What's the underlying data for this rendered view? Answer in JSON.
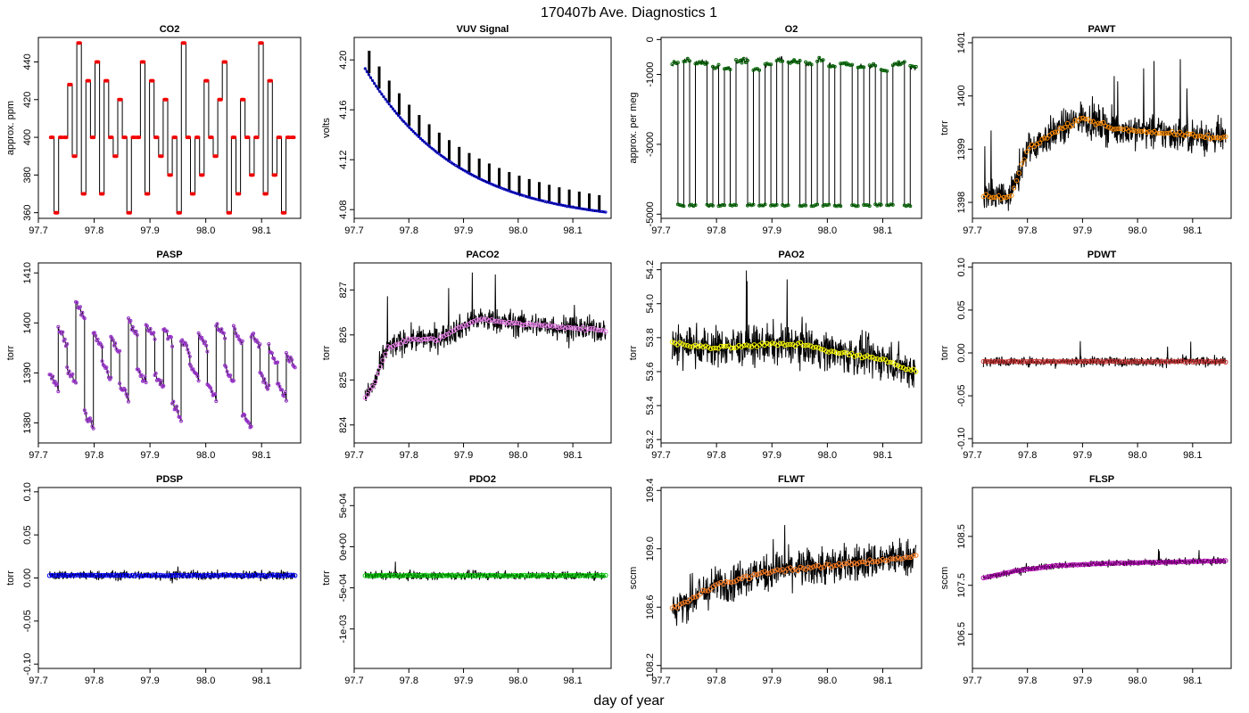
{
  "figure": {
    "title": "170407b   Ave. Diagnostics 1",
    "xlabel": "day of year"
  },
  "chart_data": [
    {
      "type": "line",
      "title": "CO2",
      "ylabel": "approx. ppm",
      "xlim": [
        97.7,
        98.17
      ],
      "ylim": [
        357,
        453
      ],
      "xticks": [
        97.7,
        97.8,
        97.9,
        98.0,
        98.1
      ],
      "xtick_labels": [
        "97.7",
        "97.8",
        "97.9",
        "98.0",
        "98.1"
      ],
      "yticks": [
        360,
        380,
        400,
        420,
        440
      ],
      "ytick_labels": [
        "360",
        "380",
        "400",
        "420",
        "440"
      ],
      "series": [
        {
          "name": "CO2",
          "style": "step",
          "marker_color": "#ff0000",
          "levels": [
            400,
            360,
            400,
            400,
            428,
            390,
            450,
            370,
            430,
            400,
            440,
            370,
            430,
            400,
            390,
            420,
            400,
            360,
            400,
            400,
            440,
            370,
            430,
            400,
            390,
            420,
            380,
            400,
            360,
            450,
            400,
            370,
            400,
            380,
            430,
            400,
            390,
            420,
            440,
            360,
            400,
            370,
            420,
            400,
            380,
            400,
            450,
            370,
            430,
            380,
            400,
            360,
            400,
            400
          ],
          "x_start": 97.72,
          "x_end": 98.16
        }
      ]
    },
    {
      "type": "line",
      "title": "VUV Signal",
      "ylabel": "volts",
      "xlim": [
        97.7,
        98.17
      ],
      "ylim": [
        4.073,
        4.218
      ],
      "xticks": [
        97.7,
        97.8,
        97.9,
        98.0,
        98.1
      ],
      "xtick_labels": [
        "97.7",
        "97.8",
        "97.9",
        "98.0",
        "98.1"
      ],
      "yticks": [
        4.08,
        4.12,
        4.16,
        4.2
      ],
      "ytick_labels": [
        "4.08",
        "4.12",
        "4.16",
        "4.20"
      ],
      "series": [
        {
          "name": "VUV",
          "style": "decay",
          "y_start": 4.193,
          "y_end": 4.078,
          "marker_color": "#0000cc",
          "spike_height": 0.018
        }
      ]
    },
    {
      "type": "line",
      "title": "O2",
      "ylabel": "approx. per meg",
      "xlim": [
        97.7,
        98.17
      ],
      "ylim": [
        -5120,
        60
      ],
      "xticks": [
        97.7,
        97.8,
        97.9,
        98.0,
        98.1
      ],
      "xtick_labels": [
        "97.7",
        "97.8",
        "97.9",
        "98.0",
        "98.1"
      ],
      "yticks": [
        -5000,
        -3000,
        -1000,
        0
      ],
      "ytick_labels": [
        "-5000",
        "-3000",
        "-1000",
        "0"
      ],
      "series": [
        {
          "name": "O2",
          "style": "square",
          "high": -700,
          "low": -4750,
          "marker_color": "#006600"
        }
      ]
    },
    {
      "type": "line",
      "title": "PAWT",
      "ylabel": "torr",
      "xlim": [
        97.7,
        98.17
      ],
      "ylim": [
        1397.7,
        1401.1
      ],
      "xticks": [
        97.7,
        97.8,
        97.9,
        98.0,
        98.1
      ],
      "xtick_labels": [
        "97.7",
        "97.8",
        "97.9",
        "98.0",
        "98.1"
      ],
      "yticks": [
        1398,
        1399,
        1400,
        1401
      ],
      "ytick_labels": [
        "1398",
        "1399",
        "1400",
        "1401"
      ],
      "series": [
        {
          "name": "PAWT",
          "style": "noisy",
          "mean_points": [
            [
              97.72,
              1398.1
            ],
            [
              97.77,
              1398.1
            ],
            [
              97.8,
              1399.0
            ],
            [
              97.83,
              1399.2
            ],
            [
              97.9,
              1399.6
            ],
            [
              97.95,
              1399.4
            ],
            [
              98.05,
              1399.3
            ],
            [
              98.16,
              1399.2
            ]
          ],
          "noise": 0.7,
          "marker_color": "#ff8c00"
        }
      ]
    },
    {
      "type": "line",
      "title": "PASP",
      "ylabel": "torr",
      "xlim": [
        97.7,
        98.17
      ],
      "ylim": [
        1376,
        1412
      ],
      "xticks": [
        97.7,
        97.8,
        97.9,
        98.0,
        98.1
      ],
      "xtick_labels": [
        "97.7",
        "97.8",
        "97.9",
        "98.0",
        "98.1"
      ],
      "yticks": [
        1380,
        1390,
        1400,
        1410
      ],
      "ytick_labels": [
        "1380",
        "1390",
        "1400",
        "1410"
      ],
      "series": [
        {
          "name": "PASP",
          "style": "sawtooth",
          "levels": [
            1390,
            1399,
            1391,
            1404,
            1382,
            1398,
            1392,
            1397,
            1388,
            1401,
            1391,
            1400,
            1390,
            1399,
            1384,
            1397,
            1392,
            1398,
            1388,
            1400,
            1391,
            1399,
            1382,
            1398,
            1390,
            1395,
            1388,
            1394
          ],
          "marker_color": "#9932cc"
        }
      ]
    },
    {
      "type": "line",
      "title": "PACO2",
      "ylabel": "torr",
      "xlim": [
        97.7,
        98.17
      ],
      "ylim": [
        823.6,
        827.6
      ],
      "xticks": [
        97.7,
        97.8,
        97.9,
        98.0,
        98.1
      ],
      "xtick_labels": [
        "97.7",
        "97.8",
        "97.9",
        "98.0",
        "98.1"
      ],
      "yticks": [
        824,
        825,
        826,
        827
      ],
      "ytick_labels": [
        "824",
        "825",
        "826",
        "827"
      ],
      "series": [
        {
          "name": "PACO2",
          "style": "noisy",
          "mean_points": [
            [
              97.72,
              824.6
            ],
            [
              97.74,
              825.0
            ],
            [
              97.76,
              825.7
            ],
            [
              97.8,
              825.9
            ],
            [
              97.85,
              825.9
            ],
            [
              97.9,
              826.2
            ],
            [
              97.93,
              826.35
            ],
            [
              98.0,
              826.25
            ],
            [
              98.16,
              826.1
            ]
          ],
          "noise": 0.6,
          "marker_color": "#ee82ee"
        }
      ]
    },
    {
      "type": "line",
      "title": "PAO2",
      "ylabel": "torr",
      "xlim": [
        97.7,
        98.17
      ],
      "ylim": [
        53.18,
        54.24
      ],
      "xticks": [
        97.7,
        97.8,
        97.9,
        98.0,
        98.1
      ],
      "xtick_labels": [
        "97.7",
        "97.8",
        "97.9",
        "98.0",
        "98.1"
      ],
      "yticks": [
        53.2,
        53.4,
        53.6,
        53.8,
        54.0,
        54.2
      ],
      "ytick_labels": [
        "53.2",
        "53.4",
        "53.6",
        "53.8",
        "54.0",
        "54.2"
      ],
      "series": [
        {
          "name": "PAO2",
          "style": "noisy",
          "mean_points": [
            [
              97.72,
              53.77
            ],
            [
              97.8,
              53.74
            ],
            [
              97.9,
              53.76
            ],
            [
              97.96,
              53.76
            ],
            [
              98.02,
              53.71
            ],
            [
              98.1,
              53.67
            ],
            [
              98.16,
              53.6
            ]
          ],
          "noise": 0.25,
          "marker_color": "#ffff00"
        }
      ]
    },
    {
      "type": "line",
      "title": "PDWT",
      "ylabel": "torr",
      "xlim": [
        97.7,
        98.17
      ],
      "ylim": [
        -0.105,
        0.105
      ],
      "xticks": [
        97.7,
        97.8,
        97.9,
        98.0,
        98.1
      ],
      "xtick_labels": [
        "97.7",
        "97.8",
        "97.9",
        "98.0",
        "98.1"
      ],
      "yticks": [
        -0.1,
        -0.05,
        0.0,
        0.05,
        0.1
      ],
      "ytick_labels": [
        "-0.10",
        "-0.05",
        "0.00",
        "0.05",
        "0.10"
      ],
      "series": [
        {
          "name": "PDWT",
          "style": "noisy",
          "mean_points": [
            [
              97.72,
              -0.01
            ],
            [
              98.16,
              -0.01
            ]
          ],
          "noise": 0.012,
          "marker_color": "#cc3333"
        }
      ]
    },
    {
      "type": "line",
      "title": "PDSP",
      "ylabel": "torr",
      "xlim": [
        97.7,
        98.17
      ],
      "ylim": [
        -0.105,
        0.105
      ],
      "xticks": [
        97.7,
        97.8,
        97.9,
        98.0,
        98.1
      ],
      "xtick_labels": [
        "97.7",
        "97.8",
        "97.9",
        "98.0",
        "98.1"
      ],
      "yticks": [
        -0.1,
        -0.05,
        0.0,
        0.05,
        0.1
      ],
      "ytick_labels": [
        "-0.10",
        "-0.05",
        "0.00",
        "0.05",
        "0.10"
      ],
      "series": [
        {
          "name": "PDSP",
          "style": "noisy",
          "mean_points": [
            [
              97.72,
              0.003
            ],
            [
              98.16,
              0.003
            ]
          ],
          "noise": 0.012,
          "marker_color": "#0000ff"
        }
      ]
    },
    {
      "type": "line",
      "title": "PDO2",
      "ylabel": "torr",
      "xlim": [
        97.7,
        98.17
      ],
      "ylim": [
        -0.00148,
        0.00072
      ],
      "xticks": [
        97.7,
        97.8,
        97.9,
        98.0,
        98.1
      ],
      "xtick_labels": [
        "97.7",
        "97.8",
        "97.9",
        "98.0",
        "98.1"
      ],
      "yticks": [
        -0.001,
        -0.0005,
        0.0,
        0.0005
      ],
      "ytick_labels": [
        "-1e-03",
        "-5e-04",
        "0e+00",
        "5e-04"
      ],
      "series": [
        {
          "name": "PDO2",
          "style": "noisy",
          "mean_points": [
            [
              97.72,
              -0.00035
            ],
            [
              98.16,
              -0.00035
            ]
          ],
          "noise": 0.00011,
          "marker_color": "#00cc00"
        }
      ]
    },
    {
      "type": "line",
      "title": "FLWT",
      "ylabel": "sccm",
      "xlim": [
        97.7,
        98.17
      ],
      "ylim": [
        108.18,
        109.42
      ],
      "xticks": [
        97.7,
        97.8,
        97.9,
        98.0,
        98.1
      ],
      "xtick_labels": [
        "97.7",
        "97.8",
        "97.9",
        "98.0",
        "98.1"
      ],
      "yticks": [
        108.2,
        108.6,
        109.0,
        109.4
      ],
      "ytick_labels": [
        "108.2",
        "108.6",
        "109.0",
        "109.4"
      ],
      "series": [
        {
          "name": "FLWT",
          "style": "noisy",
          "mean_points": [
            [
              97.73,
              108.6
            ],
            [
              97.76,
              108.67
            ],
            [
              97.8,
              108.75
            ],
            [
              97.85,
              108.8
            ],
            [
              97.9,
              108.85
            ],
            [
              98.0,
              108.88
            ],
            [
              98.16,
              108.95
            ]
          ],
          "noise": 0.28,
          "marker_color": "#ff7f24"
        }
      ]
    },
    {
      "type": "line",
      "title": "FLSP",
      "ylabel": "sccm",
      "xlim": [
        97.7,
        98.17
      ],
      "ylim": [
        105.8,
        109.5
      ],
      "xticks": [
        97.7,
        97.8,
        97.9,
        98.0,
        98.1
      ],
      "xtick_labels": [
        "97.7",
        "97.8",
        "97.9",
        "98.0",
        "98.1"
      ],
      "yticks": [
        106.5,
        107.5,
        108.5
      ],
      "ytick_labels": [
        "106.5",
        "107.5",
        "108.5"
      ],
      "series": [
        {
          "name": "FLSP",
          "style": "noisy",
          "mean_points": [
            [
              97.72,
              107.65
            ],
            [
              97.78,
              107.8
            ],
            [
              97.85,
              107.9
            ],
            [
              97.95,
              107.95
            ],
            [
              98.16,
              108.0
            ]
          ],
          "noise": 0.15,
          "marker_color": "#b000b0"
        }
      ]
    }
  ]
}
